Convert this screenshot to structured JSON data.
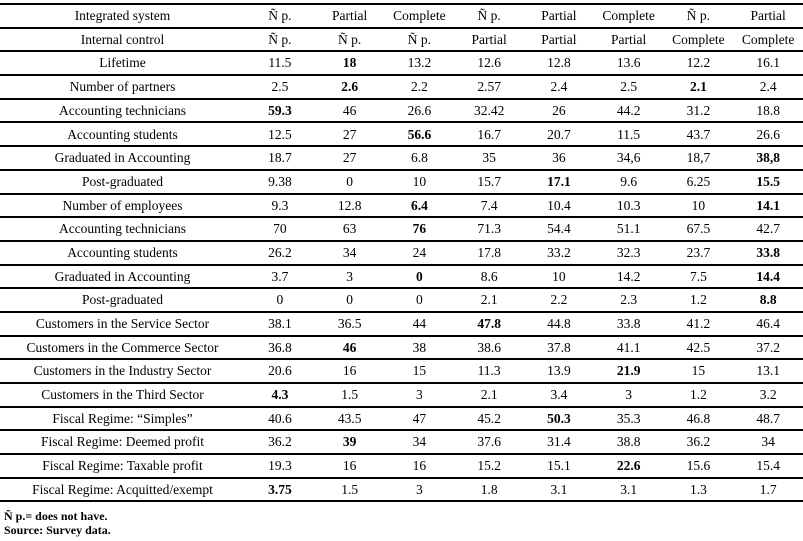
{
  "page": {
    "background_color": "#ffffff",
    "text_color": "#000000",
    "border_color": "#000000"
  },
  "table": {
    "header_rows": [
      {
        "label": "Integrated system",
        "cells": [
          "Ñ p.",
          "Partial",
          "Complete",
          "Ñ p.",
          "Partial",
          "Complete",
          "Ñ p.",
          "Partial"
        ]
      },
      {
        "label": "Internal control",
        "cells": [
          "Ñ p.",
          "Ñ p.",
          "Ñ p.",
          "Partial",
          "Partial",
          "Partial",
          "Complete",
          "Complete"
        ]
      }
    ],
    "rows": [
      {
        "label": "Lifetime",
        "values": [
          "11.5",
          "18",
          "13.2",
          "12.6",
          "12.8",
          "13.6",
          "12.2",
          "16.1"
        ],
        "bold": [
          1
        ]
      },
      {
        "label": "Number of partners",
        "values": [
          "2.5",
          "2.6",
          "2.2",
          "2.57",
          "2.4",
          "2.5",
          "2.1",
          "2.4"
        ],
        "bold": [
          1,
          6
        ]
      },
      {
        "label": "Accounting technicians",
        "values": [
          "59.3",
          "46",
          "26.6",
          "32.42",
          "26",
          "44.2",
          "31.2",
          "18.8"
        ],
        "bold": [
          0
        ]
      },
      {
        "label": "Accounting students",
        "values": [
          "12.5",
          "27",
          "56.6",
          "16.7",
          "20.7",
          "11.5",
          "43.7",
          "26.6"
        ],
        "bold": [
          2
        ]
      },
      {
        "label": "Graduated in Accounting",
        "values": [
          "18.7",
          "27",
          "6.8",
          "35",
          "36",
          "34,6",
          "18,7",
          "38,8"
        ],
        "bold": [
          7
        ]
      },
      {
        "label": "Post-graduated",
        "values": [
          "9.38",
          "0",
          "10",
          "15.7",
          "17.1",
          "9.6",
          "6.25",
          "15.5"
        ],
        "bold": [
          4,
          7
        ]
      },
      {
        "label": "Number of employees",
        "values": [
          "9.3",
          "12.8",
          "6.4",
          "7.4",
          "10.4",
          "10.3",
          "10",
          "14.1"
        ],
        "bold": [
          2,
          7
        ]
      },
      {
        "label": "Accounting technicians",
        "values": [
          "70",
          "63",
          "76",
          "71.3",
          "54.4",
          "51.1",
          "67.5",
          "42.7"
        ],
        "bold": [
          2
        ]
      },
      {
        "label": "Accounting students",
        "values": [
          "26.2",
          "34",
          "24",
          "17.8",
          "33.2",
          "32.3",
          "23.7",
          "33.8"
        ],
        "bold": [
          7
        ]
      },
      {
        "label": "Graduated in Accounting",
        "values": [
          "3.7",
          "3",
          "0",
          "8.6",
          "10",
          "14.2",
          "7.5",
          "14.4"
        ],
        "bold": [
          2,
          7
        ]
      },
      {
        "label": "Post-graduated",
        "values": [
          "0",
          "0",
          "0",
          "2.1",
          "2.2",
          "2.3",
          "1.2",
          "8.8"
        ],
        "bold": [
          7
        ]
      },
      {
        "label": "Customers in the Service Sector",
        "values": [
          "38.1",
          "36.5",
          "44",
          "47.8",
          "44.8",
          "33.8",
          "41.2",
          "46.4"
        ],
        "bold": [
          3
        ]
      },
      {
        "label": "Customers in the Commerce Sector",
        "values": [
          "36.8",
          "46",
          "38",
          "38.6",
          "37.8",
          "41.1",
          "42.5",
          "37.2"
        ],
        "bold": [
          1
        ]
      },
      {
        "label": "Customers in the Industry Sector",
        "values": [
          "20.6",
          "16",
          "15",
          "11.3",
          "13.9",
          "21.9",
          "15",
          "13.1"
        ],
        "bold": [
          5
        ]
      },
      {
        "label": "Customers in the Third Sector",
        "values": [
          "4.3",
          "1.5",
          "3",
          "2.1",
          "3.4",
          "3",
          "1.2",
          "3.2"
        ],
        "bold": [
          0
        ]
      },
      {
        "label": "Fiscal Regime: “Simples”",
        "values": [
          "40.6",
          "43.5",
          "47",
          "45.2",
          "50.3",
          "35.3",
          "46.8",
          "48.7"
        ],
        "bold": [
          4
        ]
      },
      {
        "label": "Fiscal Regime: Deemed profit",
        "values": [
          "36.2",
          "39",
          "34",
          "37.6",
          "31.4",
          "38.8",
          "36.2",
          "34"
        ],
        "bold": [
          1
        ]
      },
      {
        "label": "Fiscal Regime: Taxable profit",
        "values": [
          "19.3",
          "16",
          "16",
          "15.2",
          "15.1",
          "22.6",
          "15.6",
          "15.4"
        ],
        "bold": [
          5
        ]
      },
      {
        "label": "Fiscal Regime: Acquitted/exempt",
        "values": [
          "3.75",
          "1.5",
          "3",
          "1.8",
          "3.1",
          "3.1",
          "1.3",
          "1.7"
        ],
        "bold": [
          0
        ]
      }
    ]
  },
  "footnotes": [
    "Ñ p.= does not have.",
    "Source: Survey data."
  ]
}
